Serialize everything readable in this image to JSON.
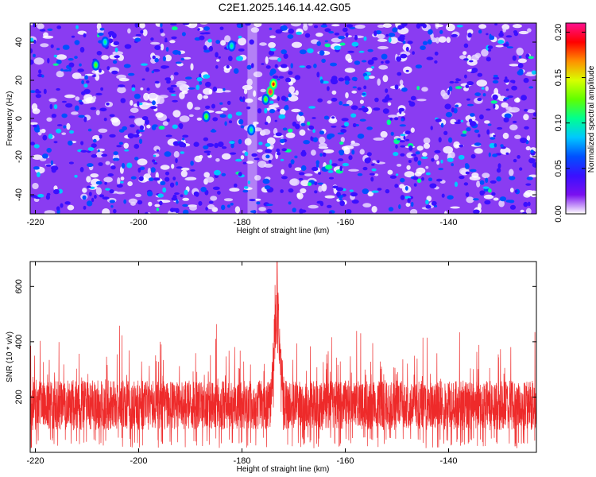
{
  "title": "C2E1.2025.146.14.42.G05",
  "colors": {
    "snr_line": "#ee2a2a",
    "colormap": [
      "#ffffff",
      "#7a10f0",
      "#3a10ff",
      "#0050ff",
      "#00c8ff",
      "#00ff90",
      "#60ff00",
      "#d8ff00",
      "#ff9000",
      "#ff0000",
      "#ff1090"
    ]
  },
  "chart_data": [
    {
      "type": "heatmap",
      "xlabel": "Height of straight line (km)",
      "ylabel": "Frequency (Hz)",
      "xlim": [
        -221,
        -123
      ],
      "ylim": [
        -50,
        50
      ],
      "xticks": [
        -220,
        -200,
        -180,
        -160,
        -140
      ],
      "yticks": [
        -40,
        -20,
        0,
        20,
        40
      ],
      "colorbar": {
        "label": "Normalized spectral amplitude",
        "range": [
          0.0,
          0.21
        ],
        "ticks": [
          "0.00",
          "0.05",
          "0.10",
          "0.15",
          "0.20"
        ]
      },
      "peaks": [
        {
          "x": -174.5,
          "y": 14,
          "value": 0.2
        },
        {
          "x": -173.9,
          "y": 18,
          "value": 0.18
        },
        {
          "x": -175.4,
          "y": 10,
          "value": 0.13
        },
        {
          "x": -186.9,
          "y": 1,
          "value": 0.12
        },
        {
          "x": -208.3,
          "y": 28,
          "value": 0.13
        },
        {
          "x": -206.5,
          "y": 40,
          "value": 0.1
        },
        {
          "x": -178.2,
          "y": -6,
          "value": 0.1
        },
        {
          "x": -182.0,
          "y": 38,
          "value": 0.11
        }
      ]
    },
    {
      "type": "line",
      "xlabel": "Height of straight line (km)",
      "ylabel": "SNR (10 * v/v)",
      "xlim": [
        -221,
        -123
      ],
      "ylim": [
        0,
        690
      ],
      "xticks": [
        -220,
        -200,
        -180,
        -160,
        -140
      ],
      "yticks": [
        200,
        400,
        600
      ],
      "noise_band": {
        "baseline": 170,
        "spread": 90,
        "spike_max": 480
      },
      "peak": {
        "x": -173.2,
        "y": 690
      }
    }
  ]
}
